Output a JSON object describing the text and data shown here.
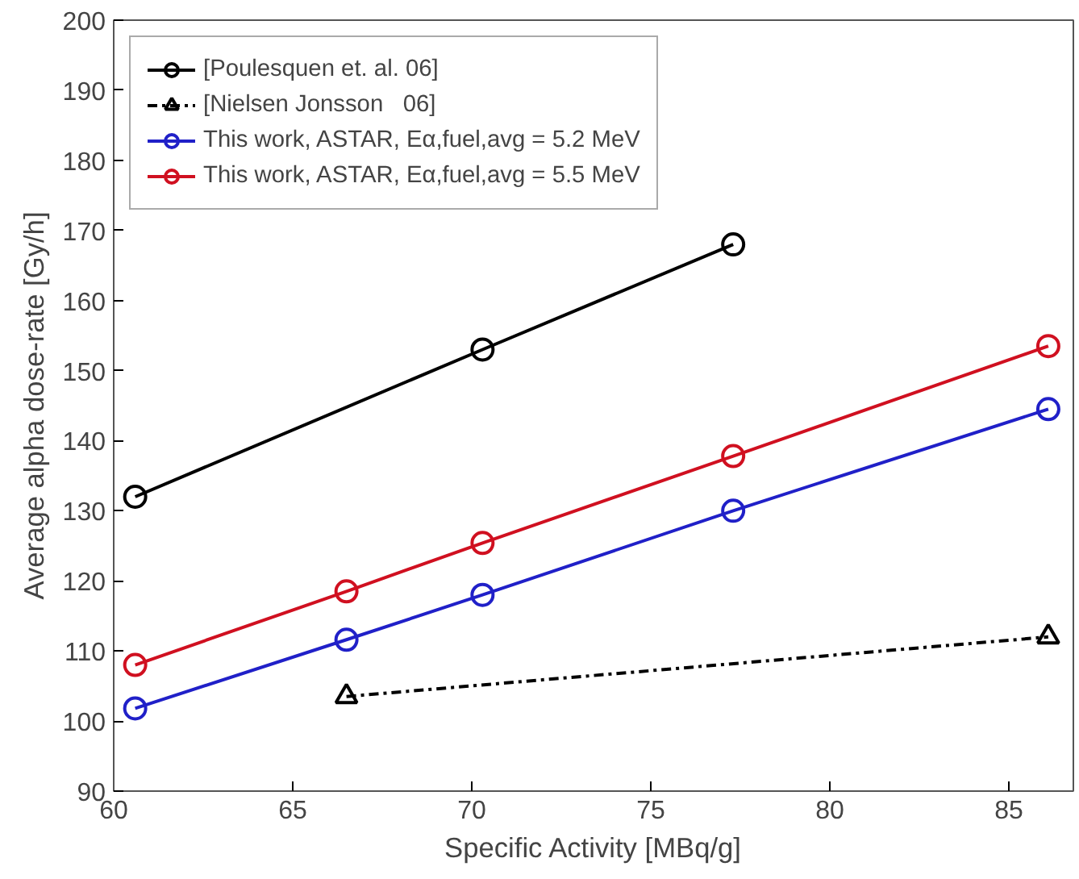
{
  "chart_data": {
    "type": "line",
    "xlabel": "Specific Activity [MBq/g]",
    "ylabel": "Average alpha dose-rate [Gy/h]",
    "xlim": [
      60,
      86.8
    ],
    "xticks": [
      60,
      65,
      70,
      75,
      80,
      85
    ],
    "ylim": [
      90,
      200
    ],
    "yticks": [
      90,
      100,
      110,
      120,
      130,
      140,
      150,
      160,
      170,
      180,
      190,
      200
    ],
    "grid": false,
    "legend": "top left",
    "series": [
      {
        "name": "[Poulesquen et. al. 06]",
        "color": "#000000",
        "marker": "circle",
        "line_style": "solid",
        "x": [
          60.6,
          70.3,
          77.3
        ],
        "values": [
          132,
          153,
          168
        ]
      },
      {
        "name": "[Nielsen Jonsson   06]",
        "color": "#000000",
        "marker": "triangle",
        "line_style": "dashdot",
        "x": [
          66.5,
          86.1
        ],
        "values": [
          103.5,
          112
        ]
      },
      {
        "name": "This work, ASTAR, Eα,fuel,avg = 5.2 MeV",
        "color": "#2020c8",
        "marker": "circle",
        "line_style": "solid",
        "x": [
          60.6,
          66.5,
          70.3,
          77.3,
          86.1
        ],
        "values": [
          101.8,
          111.6,
          118,
          130,
          144.5
        ]
      },
      {
        "name": "This work, ASTAR, Eα,fuel,avg = 5.5 MeV",
        "color": "#d01020",
        "marker": "circle",
        "line_style": "solid",
        "x": [
          60.6,
          66.5,
          70.3,
          77.3,
          86.1
        ],
        "values": [
          108,
          118.5,
          125.4,
          137.8,
          153.5
        ]
      }
    ]
  }
}
